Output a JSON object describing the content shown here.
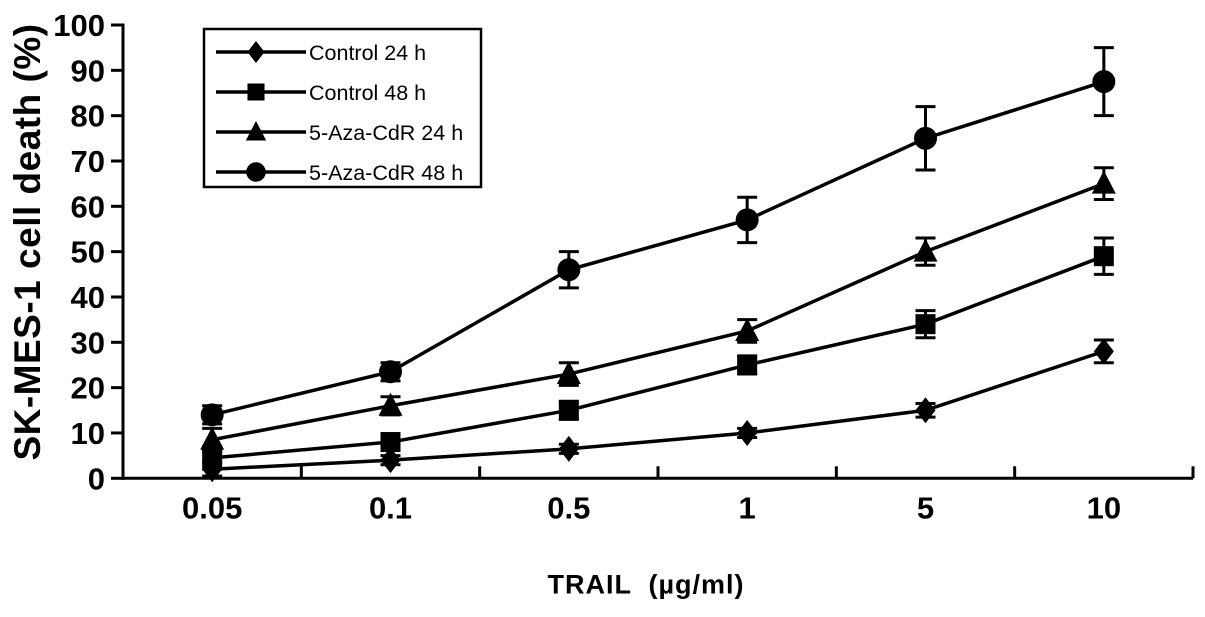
{
  "chart_data": {
    "type": "line",
    "title": "",
    "xlabel": "TRAIL  (µg/ml)",
    "ylabel": "SK-MES-1 cell death (%)",
    "categories": [
      "0.05",
      "0.1",
      "0.5",
      "1",
      "5",
      "10"
    ],
    "ylim": [
      0,
      100
    ],
    "ytick_step": 10,
    "grid": false,
    "legend_position": "top-left",
    "error_bars": true,
    "color": "#000000",
    "background": "#ffffff",
    "series": [
      {
        "name": "Control 24 h",
        "marker": "diamond",
        "values": [
          2,
          4,
          6.5,
          10,
          15,
          28
        ],
        "errors": [
          1.5,
          1,
          1,
          1,
          1.5,
          2.5
        ]
      },
      {
        "name": "Control 48 h",
        "marker": "square",
        "values": [
          4.5,
          8,
          15,
          25,
          34,
          49
        ],
        "errors": [
          2.5,
          1.5,
          2,
          2,
          3,
          4
        ]
      },
      {
        "name": "5-Aza-CdR 24 h",
        "marker": "triangle",
        "values": [
          8.5,
          16,
          23,
          32.5,
          50,
          65
        ],
        "errors": [
          2.5,
          2,
          2.5,
          2.5,
          3,
          3.5
        ]
      },
      {
        "name": "5-Aza-CdR 48 h",
        "marker": "circle",
        "values": [
          14,
          23.5,
          46,
          57,
          75,
          87.5
        ],
        "errors": [
          2,
          2,
          4,
          5,
          7,
          7.5
        ]
      }
    ]
  }
}
